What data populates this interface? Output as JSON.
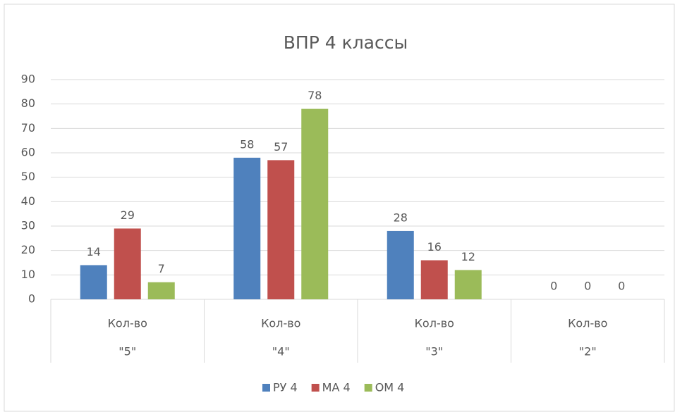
{
  "chart_data": {
    "type": "bar",
    "title": "ВПР 4 классы",
    "categories": [
      "Кол-во",
      "Кол-во",
      "Кол-во",
      "Кол-во"
    ],
    "category_groups": [
      "\"5\"",
      "\"4\"",
      "\"3\"",
      "\"2\""
    ],
    "series": [
      {
        "name": "РУ 4",
        "color": "#4f81bd",
        "values": [
          14,
          58,
          28,
          0
        ]
      },
      {
        "name": "МА 4",
        "color": "#c0504d",
        "values": [
          29,
          57,
          16,
          0
        ]
      },
      {
        "name": "ОМ 4",
        "color": "#9bbb59",
        "values": [
          7,
          78,
          12,
          0
        ]
      }
    ],
    "ylim": [
      0,
      90
    ],
    "yticks": [
      0,
      10,
      20,
      30,
      40,
      50,
      60,
      70,
      80,
      90
    ],
    "grid": true,
    "legend": "bottom",
    "data_labels": true
  }
}
